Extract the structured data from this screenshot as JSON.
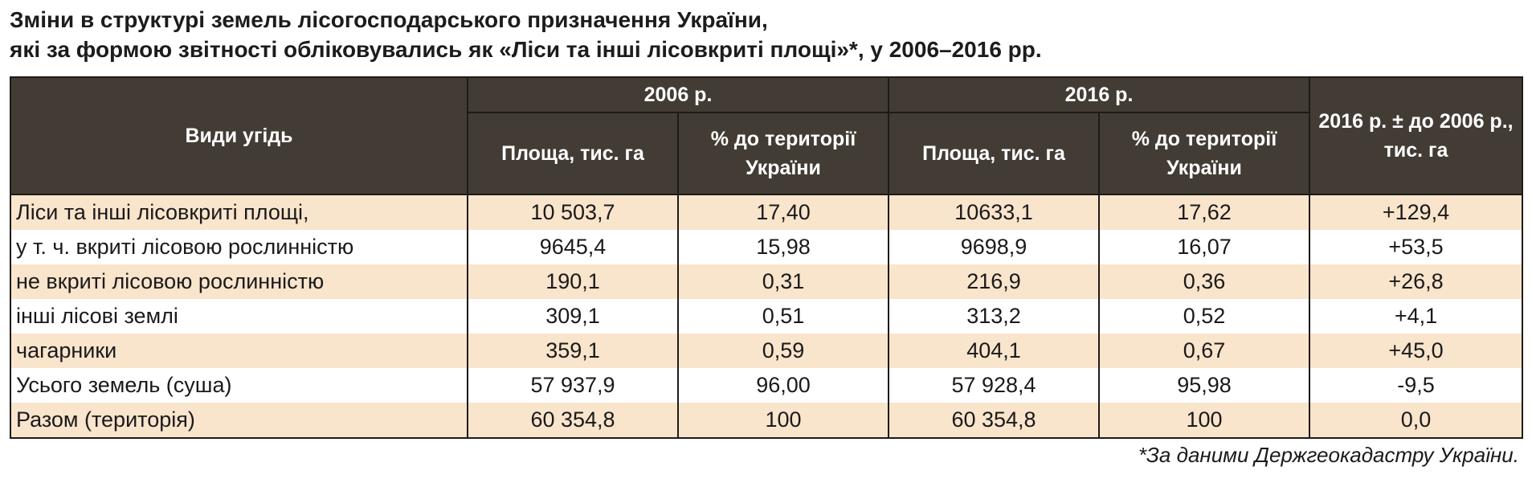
{
  "title": {
    "line1": "Зміни в структурі земель лісогосподарського призначення України,",
    "line2": "які за формою звітності обліковувались як «Ліси та інші лісовкриті площі»*, у 2006–2016 рр."
  },
  "table": {
    "header": {
      "land_types": "Види угідь",
      "year_2006": "2006 р.",
      "year_2016": "2016 р.",
      "change": "2016 р. ± до 2006 р., тис. га",
      "area": "Площа, тис. га",
      "percent": "% до території України"
    },
    "rows": [
      {
        "label": "Ліси та інші лісовкриті площі,",
        "area_2006": "10 503,7",
        "pct_2006": "17,40",
        "area_2016": "10633,1",
        "pct_2016": "17,62",
        "change": "+129,4"
      },
      {
        "label": "у т. ч. вкриті лісовою рослинністю",
        "area_2006": "9645,4",
        "pct_2006": "15,98",
        "area_2016": "9698,9",
        "pct_2016": "16,07",
        "change": "+53,5"
      },
      {
        "label": "не вкриті лісовою рослинністю",
        "area_2006": "190,1",
        "pct_2006": "0,31",
        "area_2016": "216,9",
        "pct_2016": "0,36",
        "change": "+26,8"
      },
      {
        "label": "інші лісові землі",
        "area_2006": "309,1",
        "pct_2006": "0,51",
        "area_2016": "313,2",
        "pct_2016": "0,52",
        "change": "+4,1"
      },
      {
        "label": "чагарники",
        "area_2006": "359,1",
        "pct_2006": "0,59",
        "area_2016": "404,1",
        "pct_2016": "0,67",
        "change": "+45,0"
      },
      {
        "label": "Усього земель (суша)",
        "area_2006": "57 937,9",
        "pct_2006": "96,00",
        "area_2016": "57 928,4",
        "pct_2016": "95,98",
        "change": "-9,5"
      },
      {
        "label": "Разом (територія)",
        "area_2006": "60 354,8",
        "pct_2006": "100",
        "area_2016": "60 354,8",
        "pct_2016": "100",
        "change": "0,0"
      }
    ]
  },
  "footnote": "*За даними Держгеокадастру України.",
  "colors": {
    "header_bg": "#423c35",
    "header_text": "#ffffff",
    "stripe_bg": "#f9e4cc",
    "plain_bg": "#ffffff"
  }
}
